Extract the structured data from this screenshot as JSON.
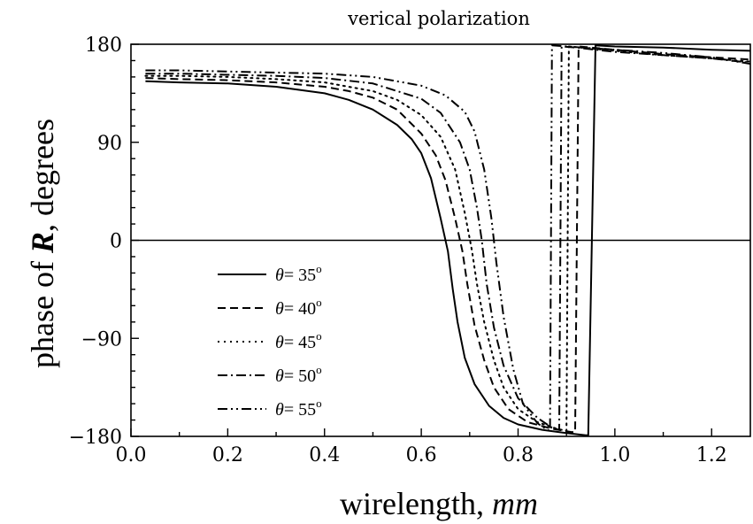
{
  "chart_data": {
    "type": "line",
    "title": "verical polarization",
    "xlabel": "wirelength, ",
    "xlabel_unit": "mm",
    "ylabel_prefix": "phase of ",
    "ylabel_symbol": "R",
    "ylabel_suffix": ", degrees",
    "xlim": [
      0.0,
      1.28
    ],
    "ylim": [
      -180,
      180
    ],
    "x_ticks": [
      "0.0",
      "0.2",
      "0.4",
      "0.6",
      "0.8",
      "1.0",
      "1.2"
    ],
    "y_ticks": [
      "180",
      "90",
      "0",
      "−90",
      "−180"
    ],
    "x_tick_values": [
      0.0,
      0.2,
      0.4,
      0.6,
      0.8,
      1.0,
      1.2
    ],
    "y_tick_values": [
      180,
      90,
      0,
      -90,
      -180
    ],
    "grid": false,
    "zero_line": true,
    "legend_placement": "lower-left",
    "series": [
      {
        "name": "θ = 35°",
        "symbol": "θ",
        "angle_text": "= 35",
        "degree": "o",
        "dash": "solid",
        "x": [
          0.03,
          0.1,
          0.2,
          0.3,
          0.4,
          0.45,
          0.5,
          0.55,
          0.58,
          0.6,
          0.62,
          0.64,
          0.655,
          0.665,
          0.675,
          0.69,
          0.71,
          0.74,
          0.77,
          0.8,
          0.85,
          0.9,
          0.94,
          0.945,
          0.96,
          1.0,
          1.1,
          1.2,
          1.28
        ],
        "y": [
          146,
          145,
          144,
          141,
          135,
          129,
          120,
          106,
          93,
          80,
          57,
          20,
          -10,
          -45,
          -75,
          -108,
          -132,
          -152,
          -163,
          -169,
          -174,
          -177,
          -179,
          -179,
          179,
          178,
          177,
          175,
          174
        ]
      },
      {
        "name": "θ = 40°",
        "symbol": "θ",
        "angle_text": "= 40",
        "degree": "o",
        "dash": "dashed",
        "x": [
          0.03,
          0.1,
          0.2,
          0.3,
          0.4,
          0.45,
          0.5,
          0.55,
          0.6,
          0.63,
          0.65,
          0.67,
          0.685,
          0.695,
          0.71,
          0.73,
          0.75,
          0.78,
          0.82,
          0.87,
          0.91,
          0.918,
          0.925,
          0.95,
          1.0,
          1.1,
          1.2,
          1.28
        ],
        "y": [
          149,
          148,
          147,
          145,
          141,
          137,
          131,
          120,
          98,
          78,
          55,
          20,
          -10,
          -40,
          -78,
          -110,
          -135,
          -155,
          -167,
          -173,
          -176,
          -176,
          178,
          177,
          175,
          171,
          168,
          166
        ]
      },
      {
        "name": "θ = 45°",
        "symbol": "θ",
        "angle_text": "= 45",
        "degree": "o",
        "dash": "dotted",
        "x": [
          0.03,
          0.1,
          0.2,
          0.3,
          0.4,
          0.5,
          0.55,
          0.6,
          0.64,
          0.67,
          0.69,
          0.705,
          0.715,
          0.73,
          0.75,
          0.77,
          0.8,
          0.84,
          0.88,
          0.9,
          0.905,
          0.93,
          1.0,
          1.1,
          1.2,
          1.28
        ],
        "y": [
          151,
          151,
          150,
          148,
          145,
          137,
          129,
          115,
          95,
          65,
          25,
          -10,
          -40,
          -75,
          -110,
          -135,
          -155,
          -167,
          -173,
          -175,
          178,
          177,
          174,
          170,
          167,
          164
        ]
      },
      {
        "name": "θ = 50°",
        "symbol": "θ",
        "angle_text": "= 50",
        "degree": "o",
        "dash": "dashdot",
        "x": [
          0.03,
          0.1,
          0.2,
          0.3,
          0.4,
          0.5,
          0.6,
          0.64,
          0.68,
          0.7,
          0.715,
          0.725,
          0.735,
          0.75,
          0.77,
          0.8,
          0.84,
          0.87,
          0.885,
          0.89,
          0.92,
          1.0,
          1.1,
          1.2,
          1.28
        ],
        "y": [
          153,
          153,
          152,
          151,
          149,
          144,
          130,
          117,
          90,
          65,
          30,
          0,
          -40,
          -80,
          -115,
          -145,
          -163,
          -172,
          -174,
          178,
          177,
          173,
          170,
          167,
          163
        ]
      },
      {
        "name": "θ = 55°",
        "symbol": "θ",
        "angle_text": "= 55",
        "degree": "o",
        "dash": "dashdotdot",
        "x": [
          0.03,
          0.1,
          0.2,
          0.3,
          0.4,
          0.5,
          0.6,
          0.65,
          0.69,
          0.71,
          0.73,
          0.745,
          0.755,
          0.77,
          0.79,
          0.81,
          0.84,
          0.86,
          0.866,
          0.87,
          0.9,
          1.0,
          1.1,
          1.2,
          1.28
        ],
        "y": [
          156,
          156,
          155,
          154,
          153,
          150,
          142,
          133,
          118,
          100,
          65,
          20,
          -20,
          -70,
          -118,
          -150,
          -168,
          -174,
          -175,
          179,
          178,
          175,
          172,
          168,
          162
        ]
      }
    ]
  }
}
